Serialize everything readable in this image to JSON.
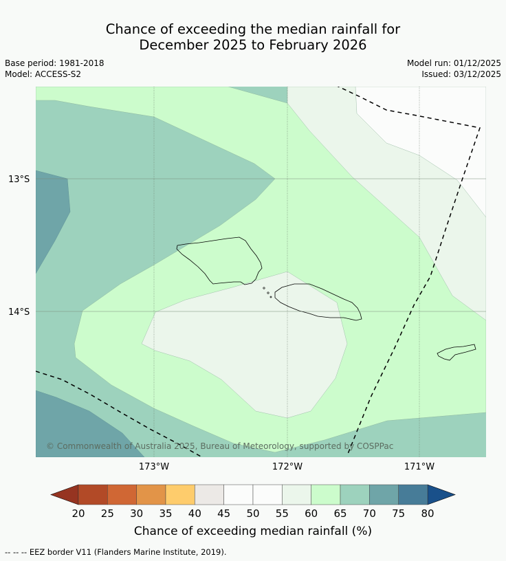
{
  "header": {
    "title_line1": "Chance of exceeding the median rainfall for",
    "title_line2": "December 2025 to February 2026",
    "base_period": "Base period: 1981-2018",
    "model": "Model: ACCESS-S2",
    "model_run": "Model run: 01/12/2025",
    "issued": "Issued: 03/12/2025"
  },
  "map": {
    "lat_labels": [
      "13°S",
      "14°S"
    ],
    "lon_labels": [
      "173°W",
      "172°W",
      "171°W"
    ],
    "copyright": "© Commonwealth of Australia 2025, Bureau of Meteorology, supported by COSPPac",
    "zone_colors": {
      "50-55": "#fbfcfb",
      "55-60": "#ebf6eb",
      "60-65": "#ccfccc",
      "65-70": "#9dd2bd",
      "70-75": "#6fa5a8",
      "75-80": "#477c98"
    }
  },
  "colorbar": {
    "ticks": [
      "20",
      "25",
      "30",
      "35",
      "40",
      "45",
      "50",
      "55",
      "60",
      "65",
      "70",
      "75",
      "80"
    ],
    "colors": [
      "#b24a27",
      "#d06734",
      "#e29448",
      "#fecc6c",
      "#ece9e6",
      "#fbfcfb",
      "#fbfcfb",
      "#ebf6eb",
      "#ccfccc",
      "#9dd2bd",
      "#6fa5a8",
      "#477c98"
    ],
    "under_color": "#963421",
    "over_color": "#19508a",
    "label": "Chance of exceeding median rainfall (%)"
  },
  "footnote": "--  --  -- EEZ border V11 (Flanders Marine Institute, 2019)."
}
